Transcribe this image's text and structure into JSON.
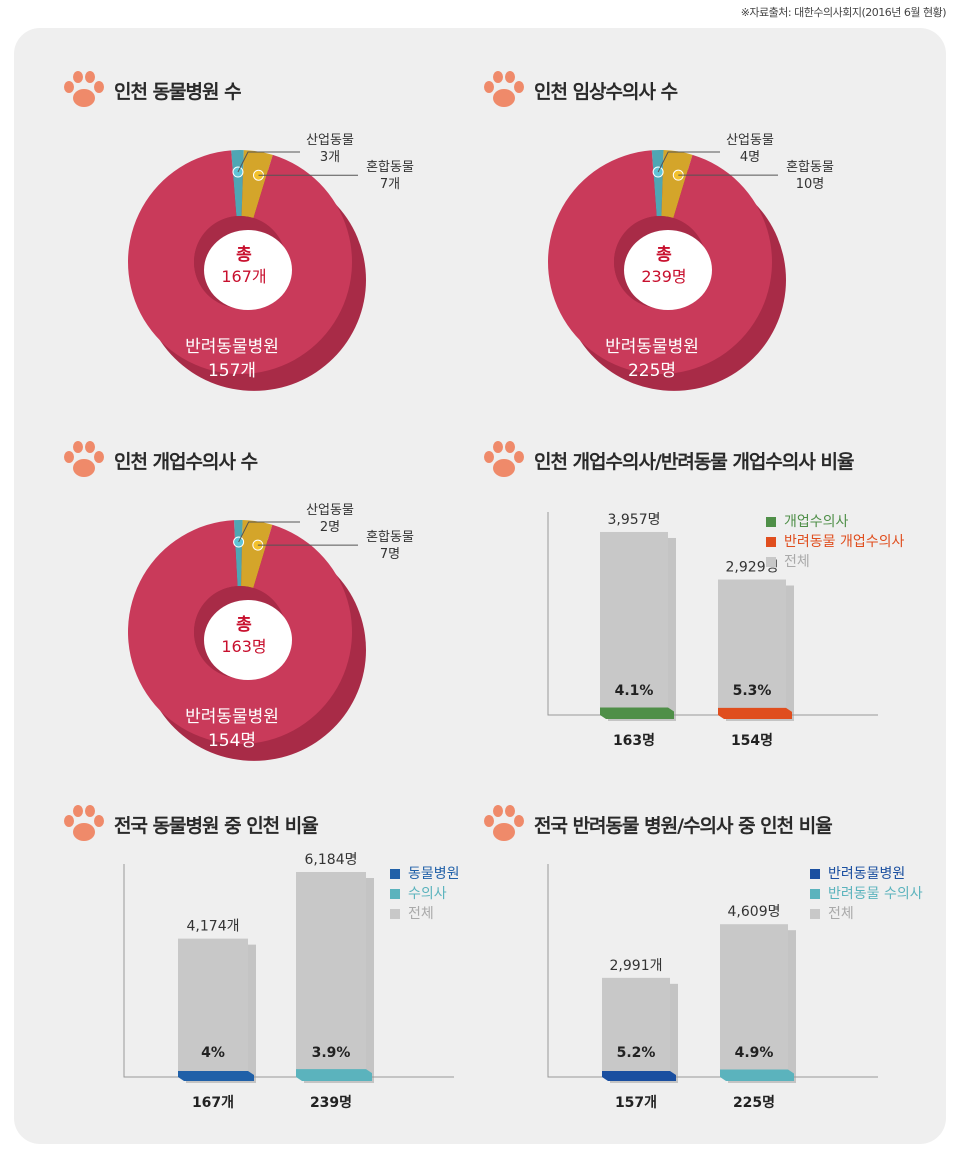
{
  "source_note": "※자료출처: 대한수의사회지(2016년 6월 현황)",
  "icons": {
    "section": "paw-icon"
  },
  "colors": {
    "donut_main": "#c93a5a",
    "donut_side": "#a82b47",
    "industrial": "#4fa6b4",
    "mixed": "#d4a52a",
    "gray_bar": "#c8c8c8",
    "green": "#4f8f48",
    "orange": "#e04e1e",
    "blue": "#2060a8",
    "teal": "#5bb3bd",
    "navy": "#1a4fa0"
  },
  "chart_data": [
    {
      "id": "donut1",
      "type": "pie",
      "title": "인천 동물병원 수",
      "center_label": "총",
      "center_value": "167개",
      "slices": [
        {
          "name": "반려동물병원",
          "value": 157,
          "label": "157개"
        },
        {
          "name": "산업동물",
          "value": 3,
          "label": "3개"
        },
        {
          "name": "혼합동물",
          "value": 7,
          "label": "7개"
        }
      ]
    },
    {
      "id": "donut2",
      "type": "pie",
      "title": "인천 임상수의사 수",
      "center_label": "총",
      "center_value": "239명",
      "slices": [
        {
          "name": "반려동물병원",
          "value": 225,
          "label": "225명"
        },
        {
          "name": "산업동물",
          "value": 4,
          "label": "4명"
        },
        {
          "name": "혼합동물",
          "value": 10,
          "label": "10명"
        }
      ]
    },
    {
      "id": "donut3",
      "type": "pie",
      "title": "인천 개업수의사 수",
      "center_label": "총",
      "center_value": "163명",
      "slices": [
        {
          "name": "반려동물병원",
          "value": 154,
          "label": "154명"
        },
        {
          "name": "산업동물",
          "value": 2,
          "label": "2명"
        },
        {
          "name": "혼합동물",
          "value": 7,
          "label": "7명"
        }
      ]
    },
    {
      "id": "bar1",
      "type": "bar",
      "title": "인천 개업수의사/반려동물 개업수의사 비율",
      "legend": [
        "개업수의사",
        "반려동물 개업수의사",
        "전체"
      ],
      "bars": [
        {
          "total": 3957,
          "total_label": "3,957명",
          "part": 163,
          "part_label": "163명",
          "pct": "4.1%",
          "color": "#4f8f48"
        },
        {
          "total": 2929,
          "total_label": "2,929명",
          "part": 154,
          "part_label": "154명",
          "pct": "5.3%",
          "color": "#e04e1e"
        }
      ]
    },
    {
      "id": "bar2",
      "type": "bar",
      "title": "전국 동물병원 중 인천 비율",
      "legend": [
        "동물병원",
        "수의사",
        "전체"
      ],
      "bars": [
        {
          "total": 4174,
          "total_label": "4,174개",
          "part": 167,
          "part_label": "167개",
          "pct": "4%",
          "color": "#2060a8"
        },
        {
          "total": 6184,
          "total_label": "6,184명",
          "part": 239,
          "part_label": "239명",
          "pct": "3.9%",
          "color": "#5bb3bd"
        }
      ]
    },
    {
      "id": "bar3",
      "type": "bar",
      "title": "전국 반려동물 병원/수의사 중 인천 비율",
      "legend": [
        "반려동물병원",
        "반려동물 수의사",
        "전체"
      ],
      "bars": [
        {
          "total": 2991,
          "total_label": "2,991개",
          "part": 157,
          "part_label": "157개",
          "pct": "5.2%",
          "color": "#1a4fa0"
        },
        {
          "total": 4609,
          "total_label": "4,609명",
          "part": 225,
          "part_label": "225명",
          "pct": "4.9%",
          "color": "#5bb3bd"
        }
      ]
    }
  ]
}
